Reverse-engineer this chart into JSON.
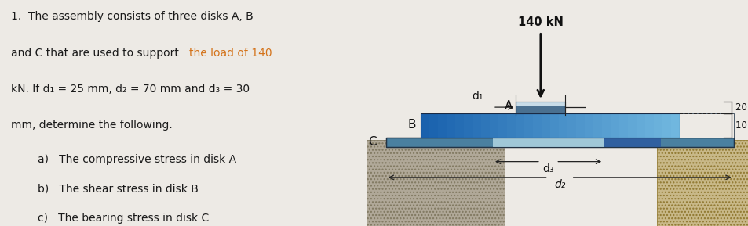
{
  "bg_color": "#edeae5",
  "text_color": "#1a1a1a",
  "orange_color": "#d4731a",
  "diagram": {
    "disk_A_dark": "#4a7090",
    "disk_A_light": "#c8dce8",
    "disk_B_left": "#2a6aaa",
    "disk_B_right": "#7ac0e0",
    "disk_C_outer": "#4a80a0",
    "disk_C_light": "#a0c8d8",
    "disk_C_dark": "#3060a0",
    "ground_left_color": "#b0a898",
    "ground_right_color": "#c8b888",
    "wall_bg": "#f0eeea",
    "dim_line_color": "#222222",
    "arrow_color": "#111111"
  },
  "lines": [
    "1.  The assembly consists of three disks A, B",
    "and C that are used to support |the load of 140|",
    "kN. If d₁ = 25 mm, d₂ = 70 mm and d₃ = 30",
    "mm, determine the following."
  ],
  "items": [
    "a)   The compressive stress in disk A",
    "b)   The shear stress in disk B",
    "c)   The bearing stress in disk C"
  ]
}
